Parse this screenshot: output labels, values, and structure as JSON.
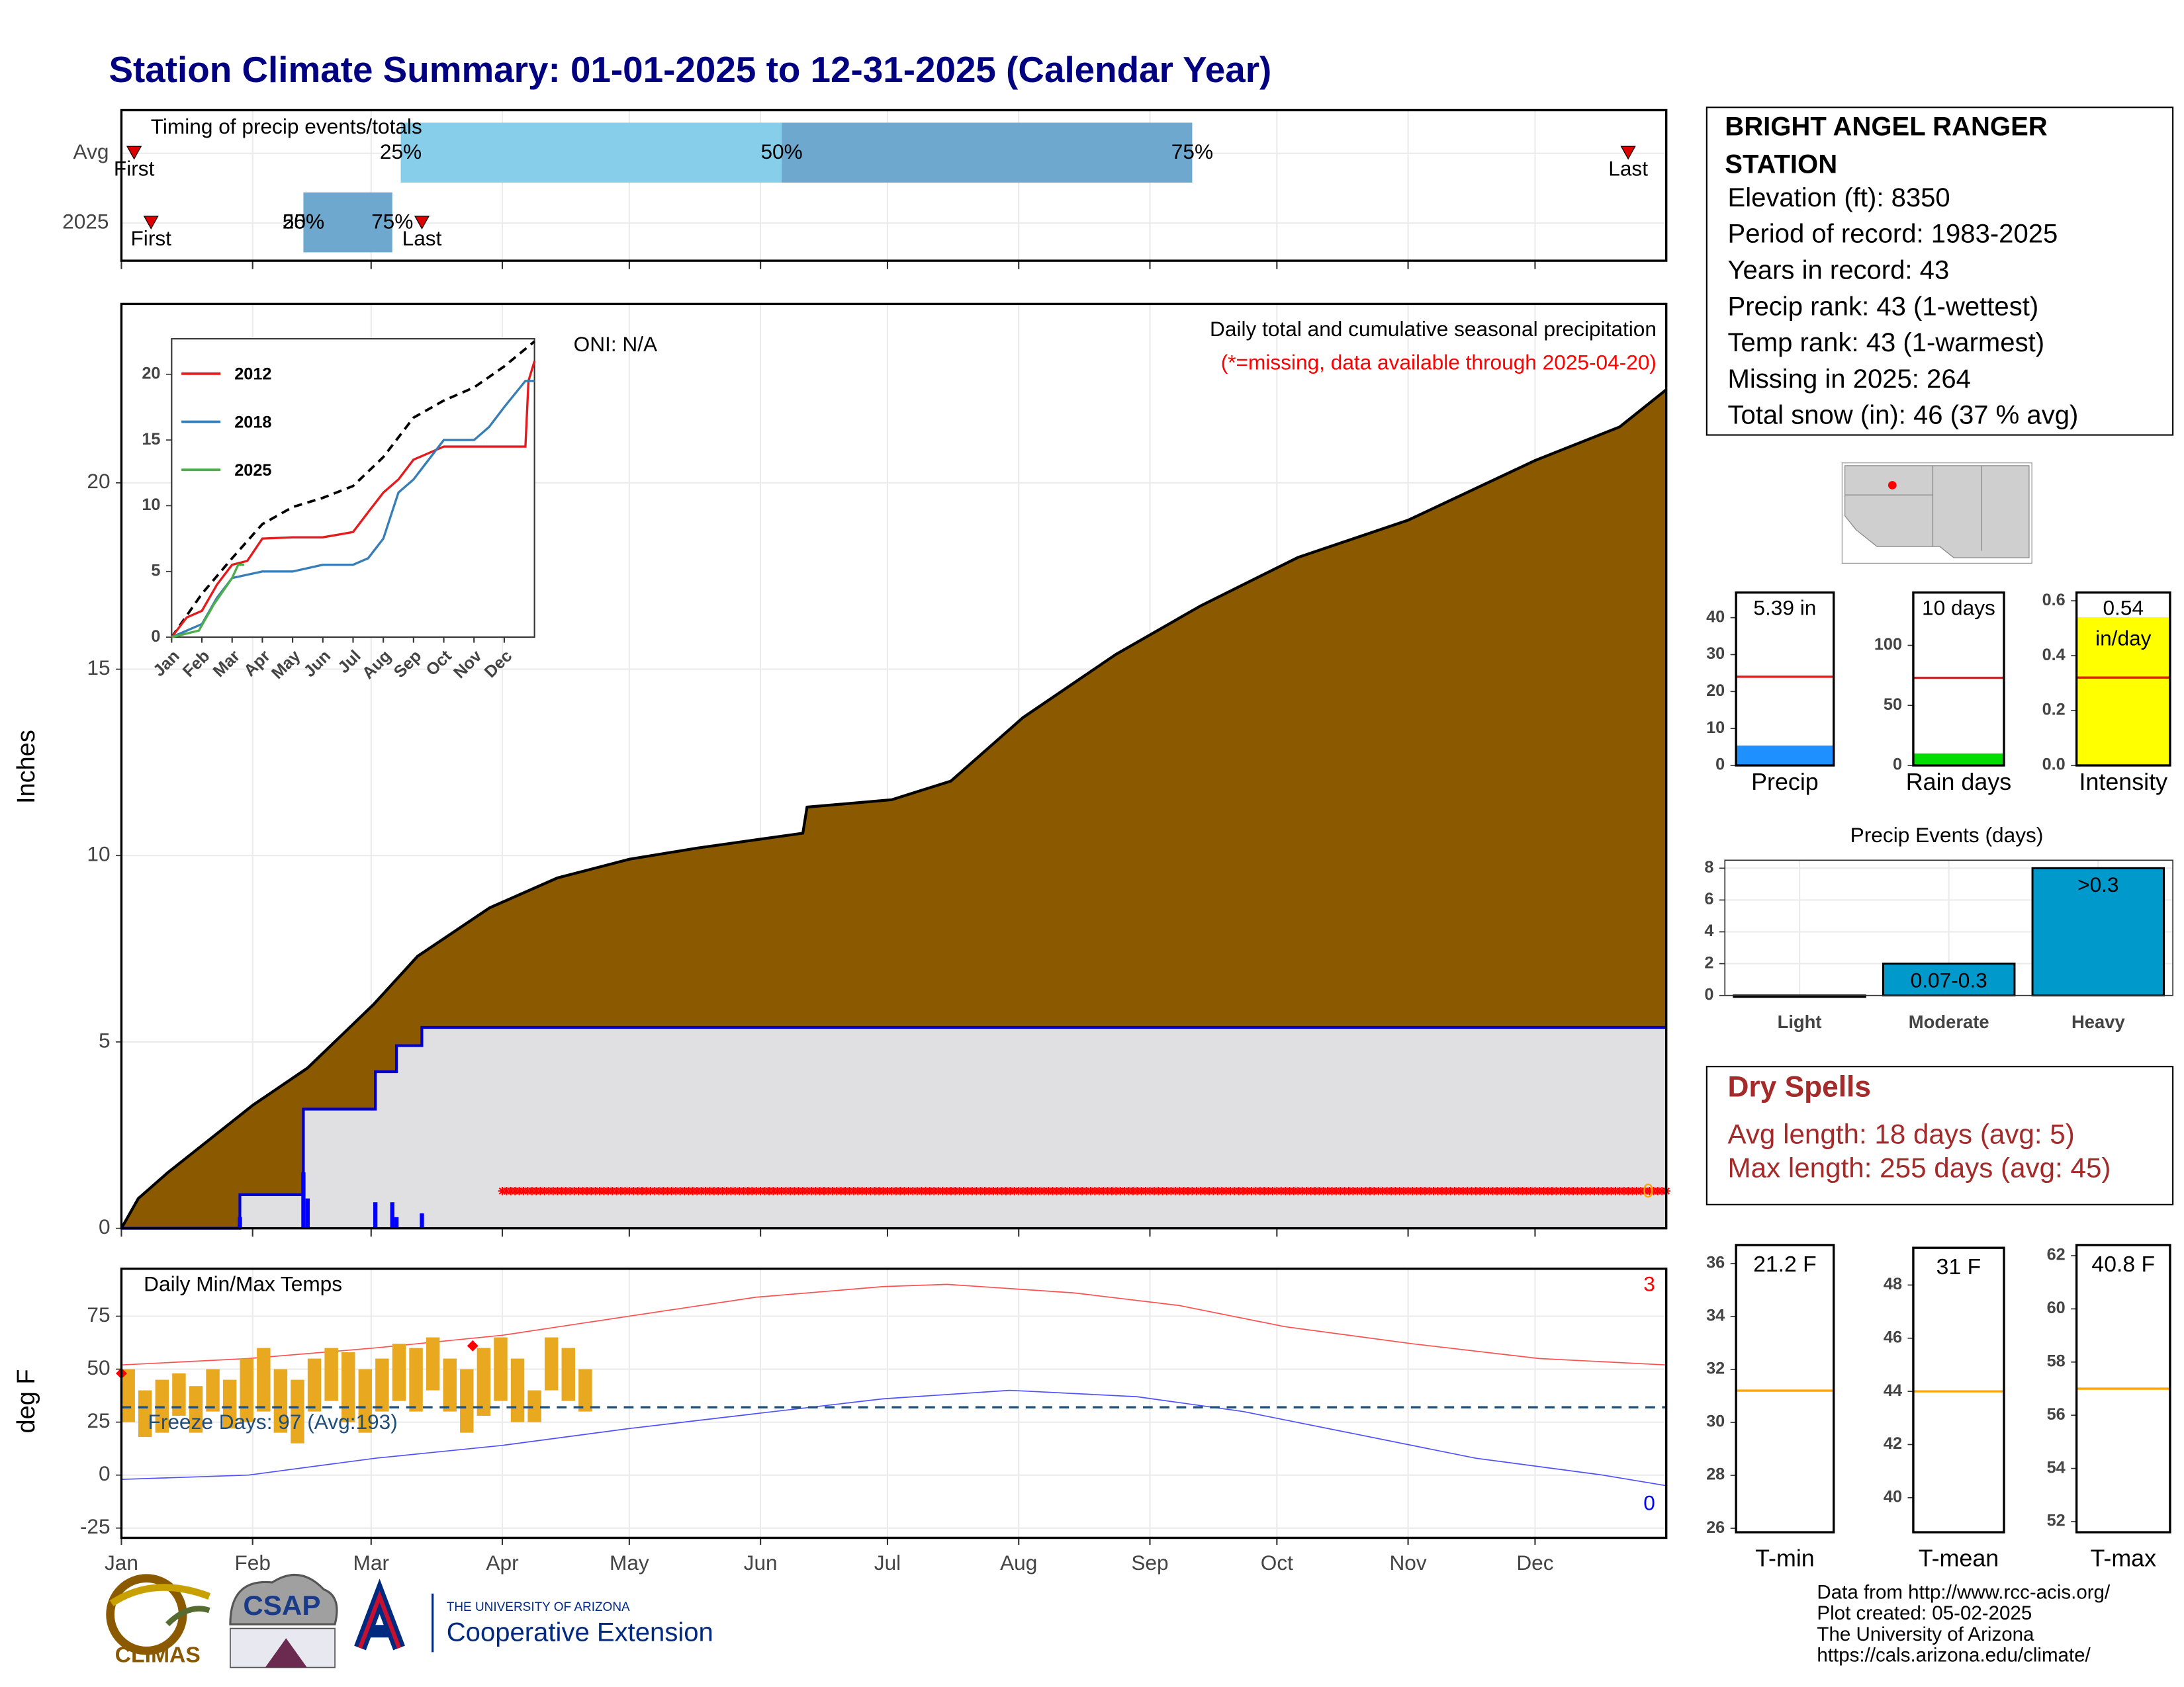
{
  "title": "Station Climate Summary: 01-01-2025 to 12-31-2025 (Calendar Year)",
  "station": {
    "name": "BRIGHT ANGEL RANGER STATION",
    "lines": [
      "Elevation (ft): 8350",
      "Period of record: 1983-2025",
      "Years in record: 43",
      "Precip rank: 43 (1-wettest)",
      "Temp rank: 43 (1-warmest)",
      "Missing in 2025: 264",
      "Total snow (in): 46 (37 % avg)"
    ]
  },
  "dry_spells": {
    "title": "Dry Spells",
    "lines": [
      "Avg length: 18 days (avg: 5)",
      "Max length: 255 days (avg: 45)"
    ]
  },
  "footer": {
    "logos": [
      "CLIMAS",
      "CSAP",
      "THE UNIVERSITY OF ARIZONA",
      "Cooperative Extension"
    ],
    "credits": [
      "Data from http://www.rcc-acis.org/",
      "Plot created: 05-02-2025",
      "The University of Arizona",
      "https://cals.arizona.edu/climate/"
    ]
  },
  "chart_data": [
    {
      "type": "timing",
      "title": "Timing of precip events/totals",
      "categories": [
        "Avg",
        "2025"
      ],
      "xlim": [
        0,
        365
      ],
      "xticks": [
        0,
        31,
        59,
        90,
        120,
        151,
        181,
        212,
        243,
        273,
        304,
        334
      ],
      "first": [
        3,
        7
      ],
      "last": [
        356,
        71
      ],
      "quartiles": [
        [
          66,
          156,
          253
        ],
        [
          43,
          43,
          64
        ]
      ],
      "first_label": "First",
      "last_label": "Last",
      "quartile_labels": [
        "25%",
        "50%",
        "75%"
      ],
      "colors": [
        "#87ceeb",
        "#6fa8cf"
      ],
      "marker_color": "#dd0000"
    },
    {
      "type": "area",
      "ylabel": "Inches",
      "oni": "ONI: N/A",
      "subtitle": "Daily total and cumulative seasonal precipitation",
      "missing_note": "(*=missing, data available through 2025-04-20)",
      "end_label": "0",
      "xlim": [
        0,
        365
      ],
      "xticks": [
        0,
        31,
        59,
        90,
        120,
        151,
        181,
        212,
        243,
        273,
        304,
        334
      ],
      "ylim": [
        0,
        24.8
      ],
      "yticks": [
        0,
        5,
        10,
        15,
        20
      ],
      "grid": true,
      "series": [
        {
          "color": "#8b5a00",
          "x": [
            0,
            4,
            11,
            31,
            44,
            59.5,
            70,
            87,
            103,
            120,
            136,
            161,
            162,
            182,
            196,
            213,
            235,
            255,
            278,
            304,
            334,
            354,
            365
          ],
          "values": [
            0,
            0.8,
            1.5,
            3.3,
            4.3,
            6.0,
            7.3,
            8.6,
            9.4,
            9.9,
            10.2,
            10.6,
            11.3,
            11.5,
            12.0,
            13.7,
            15.4,
            16.7,
            18.0,
            19.0,
            20.6,
            21.5,
            22.5
          ]
        },
        {
          "color": "#0000cd",
          "x": [
            0,
            28,
            28,
            43,
            43,
            60,
            60,
            65,
            65,
            71,
            71,
            365
          ],
          "values": [
            0,
            0,
            0.9,
            0.9,
            3.2,
            3.2,
            4.2,
            4.2,
            4.9,
            4.9,
            5.39,
            5.39
          ]
        }
      ],
      "daily": {
        "color": "#0000ff",
        "x": [
          28,
          43,
          44,
          60,
          64,
          65,
          71
        ],
        "values": [
          0.3,
          1.5,
          0.8,
          0.7,
          0.7,
          0.3,
          0.4
        ]
      },
      "missing": {
        "range": [
          90,
          365
        ],
        "value": 1,
        "color": "#ff0000"
      }
    },
    {
      "type": "line",
      "xlim": [
        0,
        12
      ],
      "ylim": [
        0,
        22.7
      ],
      "yticks": [
        0,
        5,
        10,
        15,
        20
      ],
      "xticks": [
        {
          "value": 0,
          "label": "Jan"
        },
        {
          "value": 1,
          "label": "Feb"
        },
        {
          "value": 2,
          "label": "Mar"
        },
        {
          "value": 3,
          "label": "Apr"
        },
        {
          "value": 4,
          "label": "May"
        },
        {
          "value": 5,
          "label": "Jun"
        },
        {
          "value": 6,
          "label": "Jul"
        },
        {
          "value": 7,
          "label": "Aug"
        },
        {
          "value": 8,
          "label": "Sep"
        },
        {
          "value": 9,
          "label": "Oct"
        },
        {
          "value": 10,
          "label": "Nov"
        },
        {
          "value": 11,
          "label": "Dec"
        }
      ],
      "series": [
        {
          "color": "#000000",
          "dash": true,
          "x": [
            0,
            1,
            2,
            3,
            4,
            5,
            6,
            7,
            8,
            9,
            10,
            11,
            12
          ],
          "values": [
            0,
            3.3,
            6,
            8.6,
            9.9,
            10.6,
            11.5,
            13.7,
            16.7,
            18,
            19,
            20.6,
            22.5
          ]
        },
        {
          "name": "2012",
          "color": "#e41a1c",
          "x": [
            0,
            0.5,
            1,
            1.5,
            2,
            2.5,
            3,
            4,
            5,
            6,
            6.5,
            7,
            7.5,
            8,
            9,
            10,
            11,
            11.7,
            11.8,
            12
          ],
          "values": [
            0,
            1.5,
            2,
            4,
            5.5,
            5.8,
            7.5,
            7.6,
            7.6,
            8,
            9.5,
            11,
            12,
            13.5,
            14.5,
            14.5,
            14.5,
            14.5,
            19.5,
            21
          ]
        },
        {
          "name": "2018",
          "color": "#377eb8",
          "x": [
            0,
            1,
            1.5,
            2,
            3,
            4,
            5,
            6,
            6.5,
            7,
            7.5,
            8,
            8.5,
            9,
            10,
            10.5,
            11,
            11.7,
            12
          ],
          "values": [
            0,
            1,
            3,
            4.5,
            5,
            5,
            5.5,
            5.5,
            6,
            7.5,
            11,
            12,
            13.5,
            15,
            15,
            16,
            17.5,
            19.5,
            19.5
          ]
        },
        {
          "name": "2025",
          "color": "#4daf4a",
          "x": [
            0,
            0.9,
            1.4,
            2,
            2.2,
            2.4
          ],
          "values": [
            0,
            0.5,
            2.5,
            4.5,
            5.5,
            5.5
          ]
        }
      ]
    },
    {
      "type": "temps",
      "title": "Daily Min/Max Temps",
      "ylabel": "deg F",
      "freeze_label": "Freeze Days: 97 (Avg:193)",
      "freeze_line": 32,
      "record_high_count": "3",
      "record_low_count": "0",
      "xlim": [
        0,
        365
      ],
      "ylim": [
        -29.6,
        97.4
      ],
      "yticks": [
        -25,
        0,
        25,
        50,
        75
      ],
      "grid": true,
      "xticks": [
        {
          "value": 0,
          "label": "Jan"
        },
        {
          "value": 31,
          "label": "Feb"
        },
        {
          "value": 59,
          "label": "Mar"
        },
        {
          "value": 90,
          "label": "Apr"
        },
        {
          "value": 120,
          "label": "May"
        },
        {
          "value": 151,
          "label": "Jun"
        },
        {
          "value": 181,
          "label": "Jul"
        },
        {
          "value": 212,
          "label": "Aug"
        },
        {
          "value": 243,
          "label": "Sep"
        },
        {
          "value": 273,
          "label": "Oct"
        },
        {
          "value": 304,
          "label": "Nov"
        },
        {
          "value": 334,
          "label": "Dec"
        }
      ],
      "normal_max": {
        "color": "#ff5050",
        "x": [
          0,
          30,
          60,
          90,
          120,
          150,
          180,
          195,
          225,
          250,
          275,
          305,
          335,
          365
        ],
        "values": [
          52,
          55,
          60,
          66,
          75,
          84,
          89,
          90,
          86,
          80,
          70,
          62,
          55,
          52
        ]
      },
      "normal_min": {
        "color": "#5050ff",
        "x": [
          0,
          30,
          60,
          90,
          120,
          150,
          180,
          210,
          240,
          265,
          290,
          320,
          350,
          365
        ],
        "values": [
          -2,
          0,
          8,
          14,
          22,
          29,
          36,
          40,
          37,
          30,
          20,
          8,
          0,
          -5
        ]
      },
      "observed": {
        "color": "#e8a820",
        "x": [
          0,
          4,
          8,
          12,
          16,
          20,
          24,
          28,
          32,
          36,
          40,
          44,
          48,
          52,
          56,
          60,
          64,
          68,
          72,
          76,
          80,
          84,
          88,
          92,
          96,
          100,
          104,
          108
        ],
        "max": [
          50,
          40,
          45,
          48,
          42,
          50,
          45,
          55,
          60,
          50,
          45,
          55,
          60,
          58,
          50,
          55,
          62,
          60,
          65,
          55,
          50,
          60,
          65,
          55,
          40,
          65,
          60,
          50
        ],
        "min": [
          25,
          18,
          20,
          28,
          20,
          30,
          22,
          25,
          30,
          20,
          15,
          30,
          35,
          25,
          20,
          30,
          35,
          30,
          40,
          30,
          20,
          28,
          35,
          25,
          25,
          40,
          35,
          30
        ]
      },
      "records": {
        "color": "#ff0000",
        "x": [
          0,
          83
        ],
        "values": [
          48,
          61
        ]
      }
    },
    {
      "type": "gauge",
      "xlabel": "Precip",
      "values": [
        5.39
      ],
      "value_labels": [
        "5.39 in"
      ],
      "average": 24,
      "average_color": "#e41a1c",
      "color": "#1e90ff",
      "ylim": [
        0,
        46.8
      ],
      "yticks": [
        0,
        10,
        20,
        30,
        40
      ]
    },
    {
      "type": "gauge",
      "xlabel": "Rain days",
      "values": [
        10
      ],
      "value_labels": [
        "10 days"
      ],
      "average": 73,
      "average_color": "#e41a1c",
      "color": "#00dd00",
      "ylim": [
        0,
        144
      ],
      "yticks": [
        0,
        50,
        100
      ]
    },
    {
      "type": "gauge",
      "xlabel": "Intensity",
      "values": [
        0.54
      ],
      "value_labels": [
        "0.54 in/day"
      ],
      "average": 0.32,
      "average_color": "#e41a1c",
      "color": "#ffff00",
      "ylim": [
        0,
        0.63
      ],
      "yticks": [
        {
          "value": 0,
          "label": "0.0"
        },
        0.2,
        0.4,
        0.6
      ]
    },
    {
      "type": "bar",
      "title": "Precip Events (days)",
      "categories": [
        "Light",
        "Moderate",
        "Heavy"
      ],
      "values": [
        0,
        2,
        8
      ],
      "bar_labels": [
        null,
        "0.07-0.3",
        ">0.3"
      ],
      "color": "#0099cc",
      "ylim": [
        0,
        8.5
      ],
      "yticks": [
        0,
        2,
        4,
        6,
        8
      ],
      "grid": true
    },
    {
      "type": "gauge",
      "xlabel": "T-min",
      "values": [
        21.2
      ],
      "value_labels": [
        "21.2 F"
      ],
      "average": 31.2,
      "average_color": "#ffa500",
      "color": "#1e90ff",
      "ylim": [
        25.85,
        36.7
      ],
      "yticks": [
        26,
        28,
        30,
        32,
        34,
        36
      ]
    },
    {
      "type": "gauge",
      "xlabel": "T-mean",
      "values": [
        31
      ],
      "value_labels": [
        "31 F"
      ],
      "average": 44,
      "average_color": "#ffa500",
      "color": "#1e90ff",
      "ylim": [
        38.7,
        49.4
      ],
      "yticks": [
        40,
        42,
        44,
        46,
        48
      ]
    },
    {
      "type": "gauge",
      "xlabel": "T-max",
      "values": [
        40.8
      ],
      "value_labels": [
        "40.8 F"
      ],
      "average": 57,
      "average_color": "#ffa500",
      "color": "#1e90ff",
      "ylim": [
        51.6,
        62.4
      ],
      "yticks": [
        52,
        54,
        56,
        58,
        60,
        62
      ]
    }
  ]
}
